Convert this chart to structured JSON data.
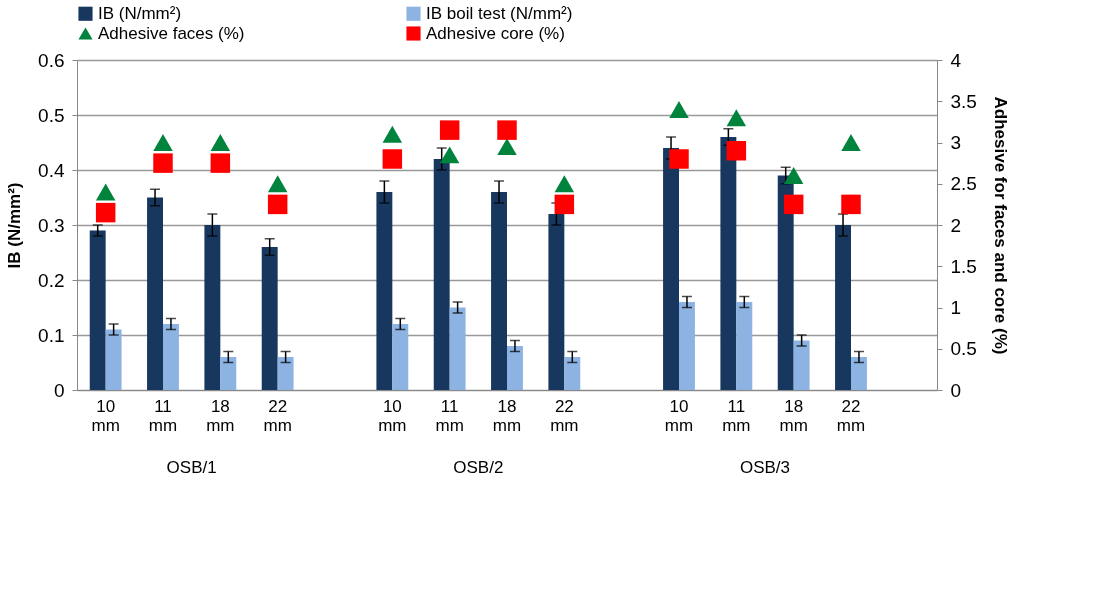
{
  "chart_data": {
    "type": "bar",
    "categories": [
      "10 mm",
      "11 mm",
      "18 mm",
      "22 mm",
      null,
      "10 mm",
      "11 mm",
      "18 mm",
      "22 mm",
      null,
      "10 mm",
      "11 mm",
      "18 mm",
      "22 mm",
      null
    ],
    "series": [
      {
        "name": "IB (N/mm²)",
        "color": "#17375e",
        "values": [
          0.29,
          0.35,
          0.3,
          0.26,
          null,
          0.36,
          0.42,
          0.36,
          0.32,
          null,
          0.44,
          0.46,
          0.39,
          0.3,
          null
        ],
        "errors": [
          0.01,
          0.015,
          0.02,
          0.015,
          null,
          0.02,
          0.02,
          0.02,
          0.02,
          null,
          0.02,
          0.015,
          0.015,
          0.02,
          null
        ]
      },
      {
        "name": "IB boil test (N/mm²)",
        "color": "#8db3e2",
        "values": [
          0.11,
          0.12,
          0.06,
          0.06,
          null,
          0.12,
          0.15,
          0.08,
          0.06,
          null,
          0.16,
          0.16,
          0.09,
          0.06,
          null
        ],
        "errors": [
          0.01,
          0.01,
          0.01,
          0.01,
          null,
          0.01,
          0.01,
          0.01,
          0.01,
          null,
          0.01,
          0.01,
          0.01,
          0.01,
          null
        ]
      },
      {
        "name": "Adhesive faces (%)",
        "type": "scatter",
        "axis": "y2",
        "marker": "triangle",
        "color": "#00843d",
        "values": [
          2.4,
          3.0,
          3.0,
          2.5,
          null,
          3.1,
          2.85,
          2.95,
          2.5,
          null,
          3.4,
          3.3,
          2.6,
          3.0,
          null
        ]
      },
      {
        "name": "Adhesive core (%)",
        "type": "scatter",
        "axis": "y2",
        "marker": "square",
        "color": "#ff0000",
        "values": [
          2.15,
          2.75,
          2.75,
          2.25,
          null,
          2.8,
          3.15,
          3.15,
          2.25,
          null,
          2.8,
          2.9,
          2.25,
          2.25,
          null
        ]
      }
    ],
    "ylabel": "IB (N/mm²)",
    "y2label": "Adhesive for faces and core (%)",
    "ylim": [
      0,
      0.6
    ],
    "yticks": [
      0,
      0.1,
      0.2,
      0.3,
      0.4,
      0.5,
      0.6
    ],
    "y2lim": [
      0,
      4
    ],
    "y2ticks": [
      0,
      0.5,
      1,
      1.5,
      2,
      2.5,
      3,
      3.5,
      4
    ],
    "annotations": [
      "OSB/1",
      "OSB/2",
      "OSB/3"
    ],
    "grid": "y",
    "legend": "top"
  }
}
